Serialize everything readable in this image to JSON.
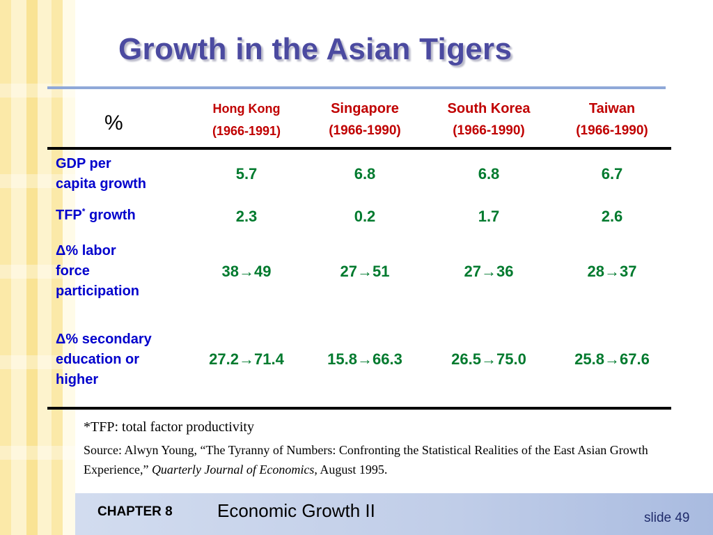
{
  "slide": {
    "title": "Growth in the Asian Tigers"
  },
  "table": {
    "corner_label": "%",
    "columns": [
      {
        "name": "Hong Kong",
        "years": "(1966-1991)"
      },
      {
        "name": "Singapore",
        "years": "(1966-1990)"
      },
      {
        "name": "South Korea",
        "years": "(1966-1990)"
      },
      {
        "name": "Taiwan",
        "years": "(1966-1990)"
      }
    ],
    "rows": [
      {
        "label_lines": [
          "GDP per",
          "capita growth"
        ],
        "values": [
          "5.7",
          "6.8",
          "6.8",
          "6.7"
        ]
      },
      {
        "label_prefix": "TFP",
        "label_sup": "*",
        "label_suffix": " growth",
        "values": [
          "2.3",
          "0.2",
          "1.7",
          "2.6"
        ]
      },
      {
        "label_lines": [
          "Δ% labor",
          "force",
          "participation"
        ],
        "values": [
          "38→49",
          "27→51",
          "27→36",
          "28→37"
        ]
      },
      {
        "label_lines": [
          "Δ% secondary",
          "education or",
          "higher"
        ],
        "values": [
          "27.2→71.4",
          "15.8→66.3",
          "26.5→75.0",
          "25.8→67.6"
        ]
      }
    ]
  },
  "footnotes": {
    "tfp_note": "*TFP: total factor productivity",
    "source_prefix": "Source: Alwyn Young, “The Tyranny of Numbers: Confronting the Statistical Realities of the East Asian Growth Experience,” ",
    "source_journal": "Quarterly Journal of Economics",
    "source_suffix": ", August 1995."
  },
  "footer": {
    "chapter_label": "CHAPTER 8",
    "chapter_title": "Economic Growth II",
    "slide_label": "slide 49"
  },
  "colors": {
    "title": "#4b4aa0",
    "column_header": "#c00000",
    "row_label": "#0000cc",
    "values": "#007a2e"
  }
}
